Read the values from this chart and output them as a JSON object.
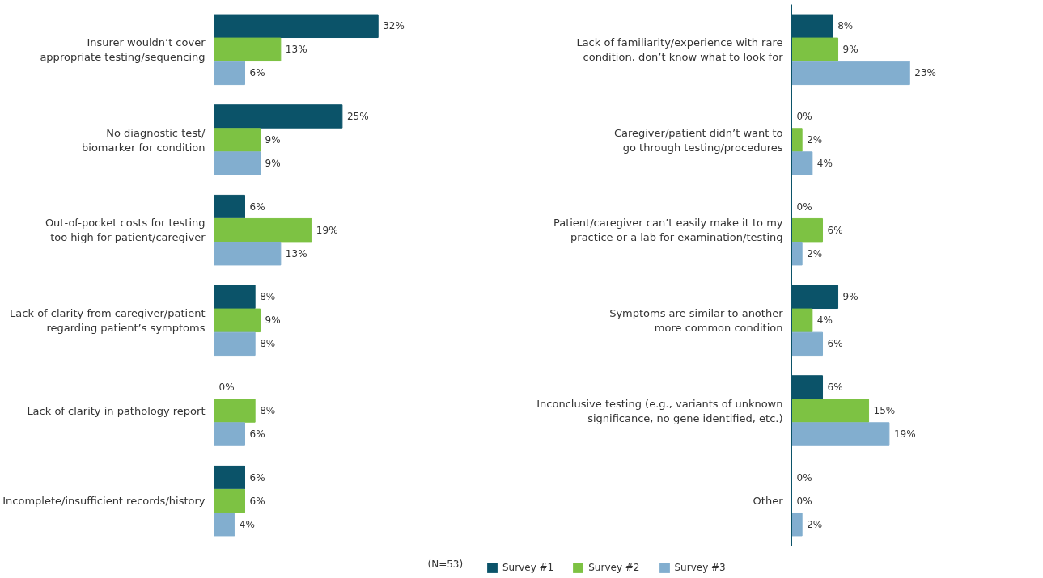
{
  "chart_data": [
    {
      "type": "bar",
      "orientation": "horizontal",
      "categories": [
        "Insurer wouldn’t cover\nappropriate testing/sequencing",
        "No diagnostic test/\nbiomarker for condition",
        "Out-of-pocket costs for testing\ntoo high for patient/caregiver",
        "Lack of clarity from caregiver/patient\nregarding patient’s symptoms",
        "Lack of clarity in pathology report",
        "Incomplete/insufficient records/history"
      ],
      "series": [
        {
          "name": "Survey #1",
          "color": "#0b5369",
          "values": [
            32,
            25,
            6,
            8,
            0,
            6
          ],
          "value_labels": [
            "32%",
            "25%",
            "6%",
            "8%",
            "0%",
            "6%"
          ]
        },
        {
          "name": "Survey #2",
          "color": "#7dc243",
          "values": [
            13,
            9,
            19,
            9,
            8,
            6
          ],
          "value_labels": [
            "13%",
            "9%",
            "19%",
            "9%",
            "8%",
            "6%"
          ]
        },
        {
          "name": "Survey #3",
          "color": "#82aecf",
          "values": [
            6,
            9,
            13,
            8,
            6,
            4
          ],
          "value_labels": [
            "6%",
            "9%",
            "13%",
            "8%",
            "6%",
            "4%"
          ]
        }
      ],
      "tick_labels": "y",
      "legend": "bottom",
      "annotations": [
        "(N=53)"
      ]
    },
    {
      "type": "bar",
      "orientation": "horizontal",
      "categories": [
        "Lack of familiarity/experience with rare\ncondition, don’t know what to look for",
        "Caregiver/patient didn’t want to\ngo through testing/procedures",
        "Patient/caregiver can’t easily make it to my\npractice or a lab for examination/testing",
        "Symptoms are similar to another\nmore common condition",
        "Inconclusive testing (e.g., variants of unknown\nsignificance, no gene identified, etc.)",
        "Other"
      ],
      "series": [
        {
          "color": "#0b5369",
          "values": [
            8,
            0,
            0,
            9,
            6,
            0
          ],
          "value_labels": [
            "8%",
            "0%",
            "0%",
            "9%",
            "6%",
            "0%"
          ]
        },
        {
          "color": "#7dc243",
          "values": [
            9,
            2,
            6,
            4,
            15,
            0
          ],
          "value_labels": [
            "9%",
            "2%",
            "6%",
            "4%",
            "15%",
            "0%"
          ]
        },
        {
          "color": "#82aecf",
          "values": [
            23,
            4,
            2,
            6,
            19,
            2
          ],
          "value_labels": [
            "23%",
            "4%",
            "2%",
            "6%",
            "19%",
            "2%"
          ]
        }
      ],
      "tick_labels": "y"
    }
  ]
}
